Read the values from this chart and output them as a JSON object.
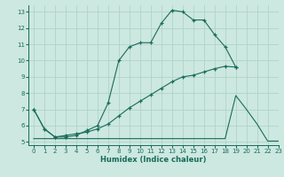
{
  "xlabel": "Humidex (Indice chaleur)",
  "background_color": "#cce8e0",
  "grid_color": "#aacfc8",
  "line_color": "#1a6b5a",
  "xlim": [
    -0.5,
    23
  ],
  "ylim": [
    4.8,
    13.4
  ],
  "xticks": [
    0,
    1,
    2,
    3,
    4,
    5,
    6,
    7,
    8,
    9,
    10,
    11,
    12,
    13,
    14,
    15,
    16,
    17,
    18,
    19,
    20,
    21,
    22,
    23
  ],
  "yticks": [
    5,
    6,
    7,
    8,
    9,
    10,
    11,
    12,
    13
  ],
  "curve1_x": [
    0,
    1,
    2,
    3,
    4,
    5,
    6,
    7,
    8,
    9,
    10,
    11,
    12,
    13,
    14,
    15,
    16,
    17,
    18,
    19
  ],
  "curve1_y": [
    7.0,
    5.8,
    5.3,
    5.3,
    5.4,
    5.7,
    6.0,
    7.4,
    10.0,
    10.85,
    11.1,
    11.1,
    12.3,
    13.1,
    13.0,
    12.5,
    12.5,
    11.6,
    10.85,
    9.6
  ],
  "curve2_x": [
    0,
    1,
    2,
    3,
    4,
    5,
    6,
    7,
    8,
    9,
    10,
    11,
    12,
    13,
    14,
    15,
    16,
    17,
    18,
    19
  ],
  "curve2_y": [
    7.0,
    5.8,
    5.3,
    5.4,
    5.5,
    5.6,
    5.8,
    6.1,
    6.6,
    7.1,
    7.5,
    7.9,
    8.3,
    8.7,
    9.0,
    9.1,
    9.3,
    9.5,
    9.65,
    9.6
  ],
  "curve3_x": [
    0,
    1,
    2,
    3,
    4,
    5,
    6,
    7,
    8,
    9,
    10,
    11,
    12,
    13,
    14,
    15,
    16,
    17,
    18,
    19,
    20,
    21,
    22,
    23
  ],
  "curve3_y": [
    5.2,
    5.2,
    5.2,
    5.2,
    5.2,
    5.2,
    5.2,
    5.2,
    5.2,
    5.2,
    5.2,
    5.2,
    5.2,
    5.2,
    5.2,
    5.2,
    5.2,
    5.2,
    5.2,
    7.85,
    7.0,
    6.1,
    5.05,
    5.05
  ]
}
